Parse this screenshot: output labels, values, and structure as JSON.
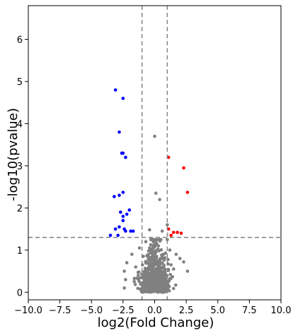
{
  "chart_data": {
    "type": "scatter",
    "title": "",
    "xlabel": "log2(Fold Change)",
    "ylabel": "-log10(pvalue)",
    "xlim": [
      -10.0,
      10.0
    ],
    "ylim": [
      -0.18,
      6.8
    ],
    "x_ticks": [
      -10.0,
      -7.5,
      -5.0,
      -2.5,
      0.0,
      2.5,
      5.0,
      7.5,
      10.0
    ],
    "x_tick_labels": [
      "−10.0",
      "−7.5",
      "−5.0",
      "−2.5",
      "0.0",
      "2.5",
      "5.0",
      "7.5",
      "10.0"
    ],
    "y_ticks": [
      0,
      1,
      2,
      3,
      4,
      5,
      6
    ],
    "y_tick_labels": [
      "0",
      "1",
      "2",
      "3",
      "4",
      "5",
      "6"
    ],
    "thresholds": {
      "x": [
        -1,
        1
      ],
      "y": 1.3
    },
    "grid": false,
    "legend": "none",
    "colors": {
      "down": "#0000ff",
      "up": "#ff0000",
      "ns": "#808080",
      "threshold": "#808080"
    },
    "series": [
      {
        "color": "#0000ff",
        "points": [
          [
            -3.1,
            4.8
          ],
          [
            -2.5,
            4.6
          ],
          [
            -2.8,
            3.8
          ],
          [
            -2.6,
            3.3
          ],
          [
            -2.5,
            3.3
          ],
          [
            -2.3,
            3.2
          ],
          [
            -3.2,
            2.27
          ],
          [
            -2.8,
            2.3
          ],
          [
            -2.5,
            2.37
          ],
          [
            -2.7,
            1.9
          ],
          [
            -2.5,
            1.8
          ],
          [
            -2.5,
            1.7
          ],
          [
            -2.0,
            1.95
          ],
          [
            -2.2,
            1.85
          ],
          [
            -2.8,
            1.55
          ],
          [
            -3.1,
            1.5
          ],
          [
            -2.4,
            1.5
          ],
          [
            -2.3,
            1.45
          ],
          [
            -1.9,
            1.45
          ],
          [
            -1.7,
            1.45
          ],
          [
            -3.5,
            1.35
          ],
          [
            -2.9,
            1.35
          ]
        ]
      },
      {
        "color": "#ff0000",
        "points": [
          [
            1.1,
            3.2
          ],
          [
            2.3,
            2.95
          ],
          [
            2.6,
            2.37
          ],
          [
            1.1,
            1.5
          ],
          [
            1.5,
            1.42
          ],
          [
            1.8,
            1.42
          ],
          [
            2.1,
            1.4
          ],
          [
            1.3,
            1.35
          ]
        ]
      },
      {
        "color": "#808080",
        "points": [
          [
            0.0,
            3.7
          ],
          [
            0.1,
            2.35
          ],
          [
            0.4,
            2.2
          ],
          [
            -0.4,
            1.48
          ],
          [
            0.6,
            1.45
          ],
          [
            1.0,
            1.6
          ],
          [
            1.2,
            1.0
          ],
          [
            1.7,
            0.9
          ],
          [
            2.0,
            0.8
          ],
          [
            2.3,
            0.72
          ],
          [
            2.6,
            0.5
          ],
          [
            1.5,
            0.55
          ],
          [
            1.3,
            0.65
          ],
          [
            -1.2,
            1.05
          ],
          [
            -1.8,
            0.9
          ],
          [
            -2.2,
            0.7
          ],
          [
            -2.4,
            0.5
          ],
          [
            -2.3,
            0.3
          ],
          [
            -2.4,
            0.1
          ],
          [
            -1.5,
            0.6
          ],
          [
            -1.3,
            0.4
          ],
          [
            1.0,
            1.25
          ],
          [
            0.7,
            0.9
          ],
          [
            -0.7,
            1.2
          ],
          [
            -0.9,
            0.85
          ],
          [
            0.3,
            1.1
          ],
          [
            -0.2,
            1.0
          ],
          [
            0.0,
            0.9
          ]
        ]
      }
    ]
  }
}
